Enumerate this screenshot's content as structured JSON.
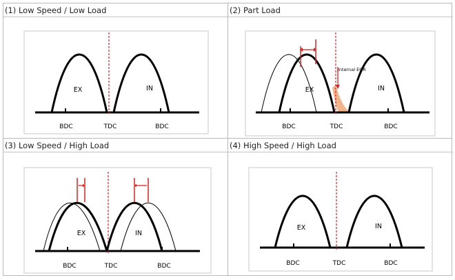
{
  "panels": [
    {
      "title": "(1) Low Speed / Low Load",
      "ex_label": "EX",
      "in_label": "IN",
      "bottom_labels": [
        "BDC",
        "TDC",
        "BDC"
      ]
    },
    {
      "title": "(2) Part Load",
      "ex_label": "EX",
      "in_label": "IN",
      "annotation": "Internal EGR",
      "bottom_labels": [
        "BDC",
        "TDC",
        "BDC"
      ]
    },
    {
      "title": "(3) Low Speed / High Load",
      "ex_label": "EX",
      "in_label": "IN",
      "bottom_labels": [
        "BDC",
        "TDC",
        "BDC"
      ]
    },
    {
      "title": "(4) High Speed / High Load",
      "ex_label": "EX",
      "in_label": "IN",
      "bottom_labels": [
        "BDC",
        "TDC",
        "BDC"
      ]
    }
  ],
  "colors": {
    "curve": "#000000",
    "tdc_line": "#e02020",
    "shift_arrow": "#e02020",
    "egr_fill": "#f2b48a",
    "frame": "#c8c8c8"
  }
}
